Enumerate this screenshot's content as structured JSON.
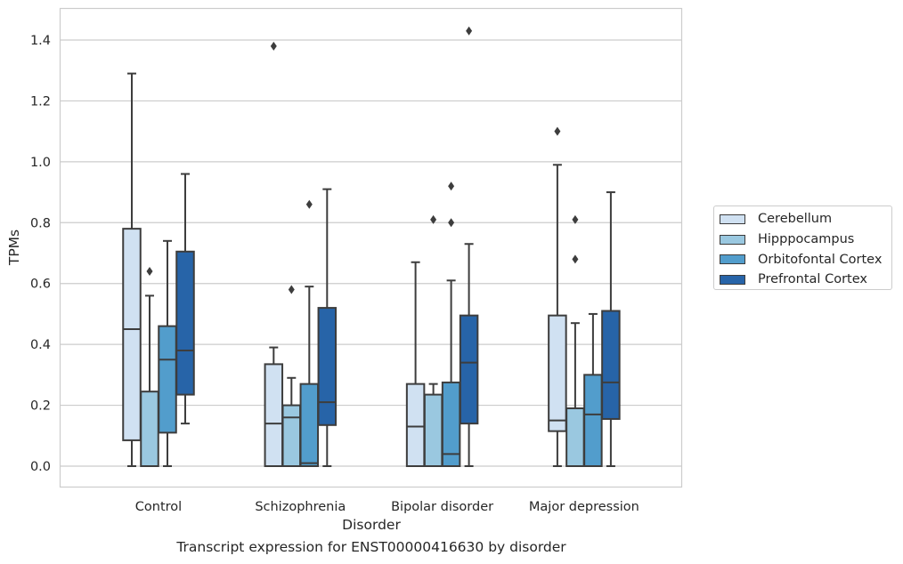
{
  "chart_data": {
    "type": "box",
    "title": "",
    "xlabel": "Disorder",
    "ylabel": "TPMs",
    "caption": "Transcript expression for ENST00000416630 by disorder",
    "categories": [
      "Control",
      "Schizophrenia",
      "Bipolar disorder",
      "Major depression"
    ],
    "y_ticks": [
      "0.0",
      "0.2",
      "0.4",
      "0.6",
      "0.8",
      "1.0",
      "1.2",
      "1.4"
    ],
    "ylim": [
      -0.07,
      1.5
    ],
    "grid": true,
    "legend_position": "right",
    "colors": {
      "Cerebellum": "#d0e1f2",
      "Hipppocampus": "#9ac8e0",
      "Orbitofontal Cortex": "#529dcc",
      "Prefrontal Cortex": "#2764a8"
    },
    "series": [
      {
        "name": "Cerebellum",
        "boxes": [
          {
            "min": 0.0,
            "q1": 0.085,
            "median": 0.45,
            "q3": 0.78,
            "max": 1.29,
            "outliers": []
          },
          {
            "min": 0.0,
            "q1": 0.0,
            "median": 0.14,
            "q3": 0.335,
            "max": 0.39,
            "outliers": [
              1.38
            ]
          },
          {
            "min": 0.0,
            "q1": 0.0,
            "median": 0.13,
            "q3": 0.27,
            "max": 0.67,
            "outliers": []
          },
          {
            "min": 0.0,
            "q1": 0.115,
            "median": 0.15,
            "q3": 0.495,
            "max": 0.99,
            "outliers": [
              1.1
            ]
          }
        ]
      },
      {
        "name": "Hipppocampus",
        "boxes": [
          {
            "min": 0.0,
            "q1": 0.0,
            "median": 0.0,
            "q3": 0.245,
            "max": 0.56,
            "outliers": [
              0.64
            ]
          },
          {
            "min": 0.0,
            "q1": 0.0,
            "median": 0.16,
            "q3": 0.2,
            "max": 0.29,
            "outliers": [
              0.58
            ]
          },
          {
            "min": 0.0,
            "q1": 0.0,
            "median": 0.0,
            "q3": 0.235,
            "max": 0.27,
            "outliers": [
              0.81
            ]
          },
          {
            "min": 0.0,
            "q1": 0.0,
            "median": 0.0,
            "q3": 0.19,
            "max": 0.47,
            "outliers": [
              0.68,
              0.81
            ]
          }
        ]
      },
      {
        "name": "Orbitofontal Cortex",
        "boxes": [
          {
            "min": 0.0,
            "q1": 0.11,
            "median": 0.35,
            "q3": 0.46,
            "max": 0.74,
            "outliers": []
          },
          {
            "min": 0.0,
            "q1": 0.0,
            "median": 0.01,
            "q3": 0.27,
            "max": 0.59,
            "outliers": [
              0.86
            ]
          },
          {
            "min": 0.0,
            "q1": 0.0,
            "median": 0.04,
            "q3": 0.275,
            "max": 0.61,
            "outliers": [
              0.8,
              0.92
            ]
          },
          {
            "min": 0.0,
            "q1": 0.0,
            "median": 0.17,
            "q3": 0.3,
            "max": 0.5,
            "outliers": []
          }
        ]
      },
      {
        "name": "Prefrontal Cortex",
        "boxes": [
          {
            "min": 0.14,
            "q1": 0.235,
            "median": 0.38,
            "q3": 0.705,
            "max": 0.96,
            "outliers": []
          },
          {
            "min": 0.0,
            "q1": 0.135,
            "median": 0.21,
            "q3": 0.52,
            "max": 0.91,
            "outliers": []
          },
          {
            "min": 0.0,
            "q1": 0.14,
            "median": 0.34,
            "q3": 0.495,
            "max": 0.73,
            "outliers": [
              1.43
            ]
          },
          {
            "min": 0.0,
            "q1": 0.155,
            "median": 0.275,
            "q3": 0.51,
            "max": 0.9,
            "outliers": []
          }
        ]
      }
    ]
  }
}
